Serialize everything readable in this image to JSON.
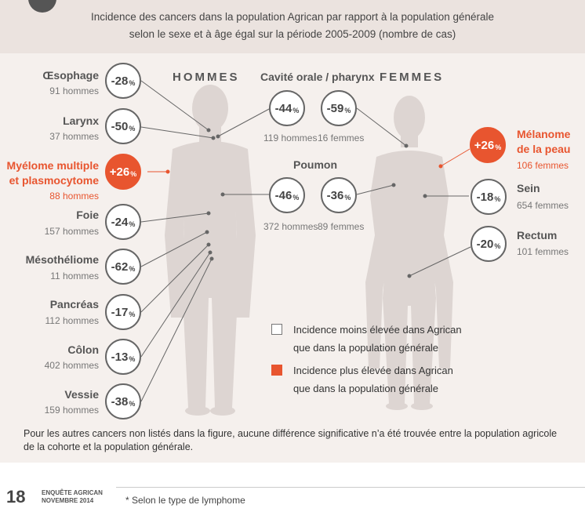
{
  "title_line1": "Incidence des cancers dans la population Agrican par rapport à la population générale",
  "title_line2": "selon le sexe et à âge égal sur la période 2005-2009 (nombre de cas)",
  "men_label": "HOMMES",
  "women_label": "FEMMES",
  "pct": "%",
  "colors": {
    "high": "#e8552f",
    "body": "#ddd5d2",
    "panel": "#f5f0ed"
  },
  "cancers": {
    "oesophage": {
      "name": "Œsophage",
      "count": "91 hommes",
      "value": "-28"
    },
    "larynx": {
      "name": "Larynx",
      "count": "37 hommes",
      "value": "-50"
    },
    "myelome_line1": "Myélome multiple",
    "myelome_line2": "et plasmocytome",
    "myelome": {
      "count": "88 hommes",
      "value": "+26"
    },
    "foie": {
      "name": "Foie",
      "count": "157 hommes",
      "value": "-24"
    },
    "mesotheliome": {
      "name": "Mésothéliome",
      "count": "11 hommes",
      "value": "-62"
    },
    "pancreas": {
      "name": "Pancréas",
      "count": "112 hommes",
      "value": "-17"
    },
    "colon": {
      "name": "Côlon",
      "count": "402 hommes",
      "value": "-13"
    },
    "vessie": {
      "name": "Vessie",
      "count": "159 hommes",
      "value": "-38"
    },
    "cavite": {
      "name": "Cavité orale / pharynx",
      "value_m": "-44",
      "value_f": "-59",
      "count_m": "119 hommes",
      "count_f": "16 femmes"
    },
    "poumon": {
      "name": "Poumon",
      "value_m": "-46",
      "value_f": "-36",
      "count_m": "372 hommes",
      "count_f": "89 femmes"
    },
    "melanome_line1": "Mélanome",
    "melanome_line2": "de la peau",
    "melanome": {
      "count": "106 femmes",
      "value": "+26"
    },
    "sein": {
      "name": "Sein",
      "count": "654 femmes",
      "value": "-18"
    },
    "rectum": {
      "name": "Rectum",
      "count": "101 femmes",
      "value": "-20"
    }
  },
  "legend": {
    "low_line1": "Incidence moins élevée dans Agrican",
    "low_line2": "que dans la population générale",
    "high_line1": "Incidence plus élevée dans Agrican",
    "high_line2": "que dans la population générale"
  },
  "note": "Pour les autres cancers non listés dans la figure, aucune différence significative n’a été trouvée entre la population agricole de la cohorte et la population générale.",
  "footer": {
    "page_number": "18",
    "publication_line1": "ENQUÊTE AGRICAN",
    "publication_line2": "NOVEMBRE 2014",
    "footnote": "* Selon le type de lymphome"
  }
}
